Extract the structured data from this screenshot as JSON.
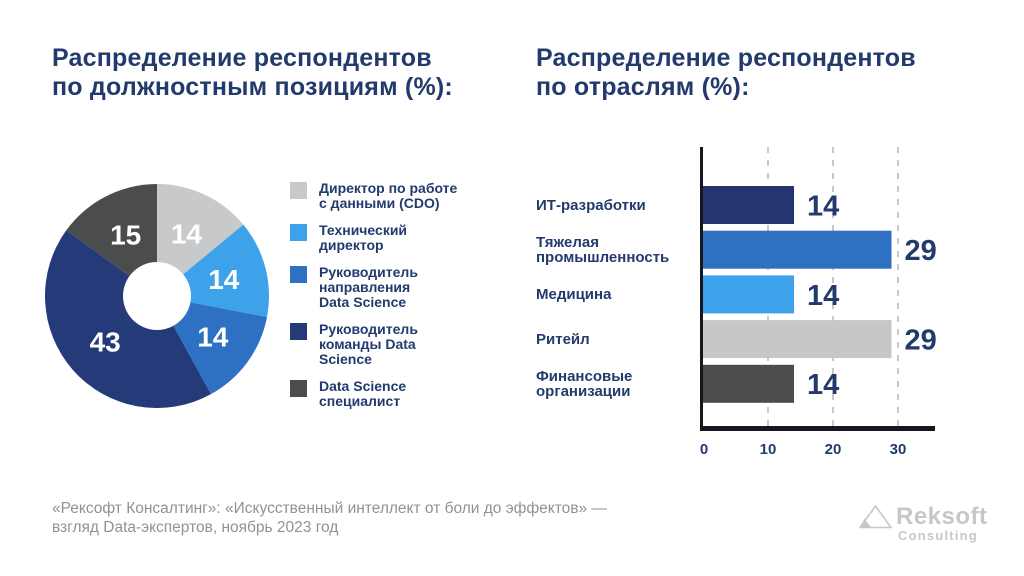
{
  "titles": {
    "left": [
      "Распределение респондентов",
      "по должностным позициям (%):"
    ],
    "right": [
      "Распределение респондентов",
      "по отраслям (%):"
    ]
  },
  "chart_data": [
    {
      "type": "pie",
      "subtype": "donut",
      "title": "Распределение респондентов по должностным позициям (%):",
      "labels": [
        "Директор по работе с данными (CDO)",
        "Технический директор",
        "Руководитель направления Data Science",
        "Руководитель команды Data Science",
        "Data Science специалист"
      ],
      "legend_lines": [
        [
          "Директор по работе",
          "с данными (CDO)"
        ],
        [
          "Технический",
          "директор"
        ],
        [
          "Руководитель",
          "направления",
          "Data Science"
        ],
        [
          "Руководитель",
          "команды Data",
          "Science"
        ],
        [
          "Data Science",
          "специалист"
        ]
      ],
      "values": [
        14,
        14,
        14,
        43,
        15
      ],
      "colors": [
        "#c7c9cb",
        "#3da2ea",
        "#2e70c1",
        "#253a78",
        "#4b4c4e"
      ],
      "value_label_color": "#ffffff",
      "start_angle": "top",
      "direction": "clockwise",
      "legend_position": "right"
    },
    {
      "type": "bar",
      "orientation": "horizontal",
      "title": "Распределение респондентов по отраслям (%):",
      "categories": [
        "ИТ-разработки",
        "Тяжелая промышленность",
        "Медицина",
        "Ритейл",
        "Финансовые организации"
      ],
      "category_lines": [
        [
          "ИТ-разработки"
        ],
        [
          "Тяжелая",
          "промышленность"
        ],
        [
          "Медицина"
        ],
        [
          "Ритейл"
        ],
        [
          "Финансовые",
          "организации"
        ]
      ],
      "values": [
        14,
        29,
        14,
        29,
        14
      ],
      "colors": [
        "#24356f",
        "#2e70c1",
        "#3da2ea",
        "#c5c7c9",
        "#4b4c4e"
      ],
      "xlim": [
        0,
        36
      ],
      "xticks": [
        0,
        10,
        20,
        30
      ],
      "grid": "vertical-dashed",
      "legend_position": "none"
    }
  ],
  "footer": {
    "line1": "«Рексофт Консалтинг»: «Искусственный интеллект от боли до эффектов» —",
    "line2": "взгляд Data-экспертов, ноябрь 2023 год"
  },
  "logo": {
    "name": "Reksoft",
    "subtitle": "Consulting"
  },
  "colors": {
    "navy_text": "#233a6d",
    "axis": "#16161e",
    "gridline": "#c6c8ca",
    "footer_text": "#8f9296",
    "logo_gray": "#c5c8cb"
  }
}
